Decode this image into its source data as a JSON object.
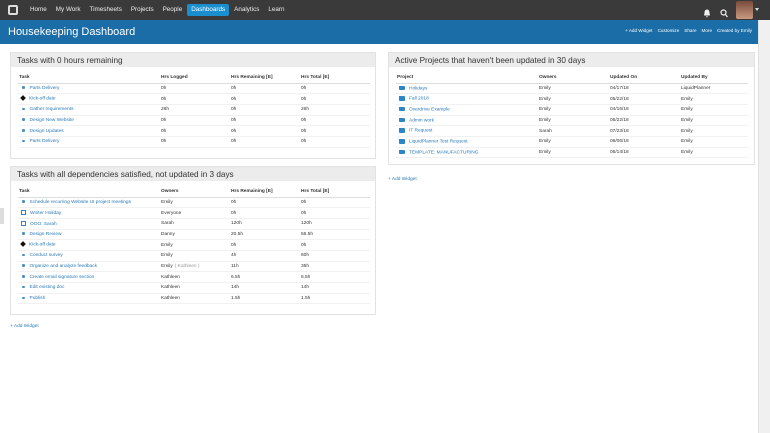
{
  "nav": {
    "items": [
      "Home",
      "My Work",
      "Timesheets",
      "Projects",
      "People",
      "Dashboards",
      "Analytics",
      "Learn"
    ],
    "active": 5
  },
  "header": {
    "title": "Housekeeping Dashboard",
    "actions": [
      "+ Add Widget",
      "Customize",
      "Share",
      "More",
      "Created by Emily"
    ]
  },
  "widgets": [
    {
      "title": "Tasks with 0 hours remaining",
      "columns": [
        "Task",
        "Hrs Logged",
        "Hrs Remaining [E]",
        "Hrs Total [E]"
      ],
      "rows": [
        [
          "Parts Delivery",
          "0h",
          "0h",
          "0h"
        ],
        [
          "Kick-off date",
          "0h",
          "0h",
          "0h"
        ],
        [
          "Gather requirements",
          "26h",
          "0h",
          "26h"
        ],
        [
          "Design New Website",
          "0h",
          "0h",
          "0h"
        ],
        [
          "Design Updates",
          "0h",
          "0h",
          "0h"
        ],
        [
          "Parts Delivery",
          "0h",
          "0h",
          "0h"
        ]
      ]
    },
    {
      "title": "Tasks with all dependencies satisfied, not updated in 3 days",
      "columns": [
        "Task",
        "Owners",
        "Hrs Remaining [E]",
        "Hrs Total [E]"
      ],
      "rows": [
        [
          "Schedule recurring Website UI project meetings",
          "Emily",
          "0h",
          "0h"
        ],
        [
          "Winter Holiday",
          "Everyone",
          "0h",
          "0h"
        ],
        [
          "OOO: Sarah",
          "Sarah",
          "120h",
          "120h"
        ],
        [
          "Design Review",
          "Danny",
          "20.5h",
          "56.5h"
        ],
        [
          "Kick-off date",
          "Emily",
          "0h",
          "0h"
        ],
        [
          "Conduct survey",
          "Emily",
          "4h",
          "60h"
        ],
        [
          "Organize and analyze feedback",
          [
            "Emily",
            "( Kathleen )"
          ],
          "11h",
          "35h"
        ],
        [
          "Create email signature section",
          "Kathleen",
          "6.5h",
          "6.5h"
        ],
        [
          "Edit existing doc",
          "Kathleen",
          "14h",
          "14h"
        ],
        [
          "Publish",
          "Kathleen",
          "1.5h",
          "1.5h"
        ]
      ]
    },
    {
      "title": "Active Projects that haven't been updated in 30 days",
      "columns": [
        "Project",
        "Owners",
        "Updated On",
        "Updated By"
      ],
      "rows": [
        [
          "Holidays",
          "Emily",
          "04/17/18",
          "LiquidPlanner"
        ],
        [
          "Fall 2018",
          "Emily",
          "05/22/18",
          "Emily"
        ],
        [
          "Overdrive Example",
          "Emily",
          "04/16/18",
          "Emily"
        ],
        [
          "Admin work",
          "Emily",
          "05/22/18",
          "Emily"
        ],
        [
          "IT Request",
          "Sarah",
          "07/23/18",
          "Emily"
        ],
        [
          "LiquidPlanner Test Request",
          "Emily",
          "06/06/18",
          "Emily"
        ],
        [
          "TEMPLATE: MANUFACTURING",
          "Emily",
          "05/14/18",
          "Emily"
        ]
      ]
    }
  ],
  "add_widget": [
    "+ Add Widget",
    "+ Add Widget"
  ]
}
